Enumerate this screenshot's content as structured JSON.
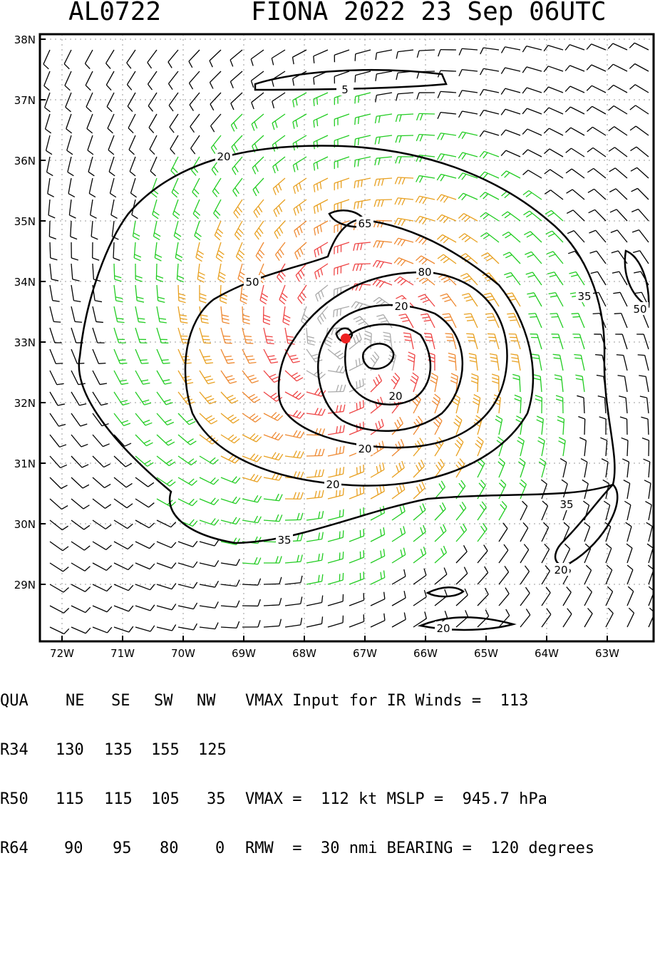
{
  "header": {
    "storm_id": "AL0722",
    "storm_title": "FIONA 2022 23 Sep 06UTC"
  },
  "map": {
    "lat_labels": [
      "38N",
      "37N",
      "36N",
      "35N",
      "34N",
      "33N",
      "32N",
      "31N",
      "30N",
      "29N"
    ],
    "lon_labels": [
      "72W",
      "71W",
      "70W",
      "69W",
      "68W",
      "67W",
      "66W",
      "65W",
      "64W",
      "63W"
    ],
    "contour_labels": [
      "5",
      "20",
      "35",
      "50",
      "65",
      "80",
      "20",
      "20",
      "20",
      "20",
      "35",
      "50",
      "35",
      "20",
      "20"
    ],
    "colors": {
      "barb_default": "#000000",
      "barb_34kt": "#22cc22",
      "barb_50kt": "#e8a020",
      "barb_64kt": "#ee8830",
      "barb_hurricane": "#ee4444",
      "barb_inner": "#aaaaaa",
      "center_marker": "#ee2222"
    }
  },
  "radii_table": {
    "headers": [
      "QUA",
      "NE",
      "SE",
      "SW",
      "NW"
    ],
    "rows": [
      {
        "label": "R34",
        "values": [
          "130",
          "135",
          "155",
          "125"
        ]
      },
      {
        "label": "R50",
        "values": [
          "115",
          "115",
          "105",
          "35"
        ]
      },
      {
        "label": "R64",
        "values": [
          "90",
          "95",
          "80",
          "0"
        ]
      }
    ]
  },
  "info": {
    "vmax_input": "VMAX Input for IR Winds =  113",
    "vmax_mslp": "VMAX =  112 kt MSLP =  945.7 hPa",
    "rmw_bearing": "RMW  =  30 nmi BEARING =  120 degrees"
  }
}
